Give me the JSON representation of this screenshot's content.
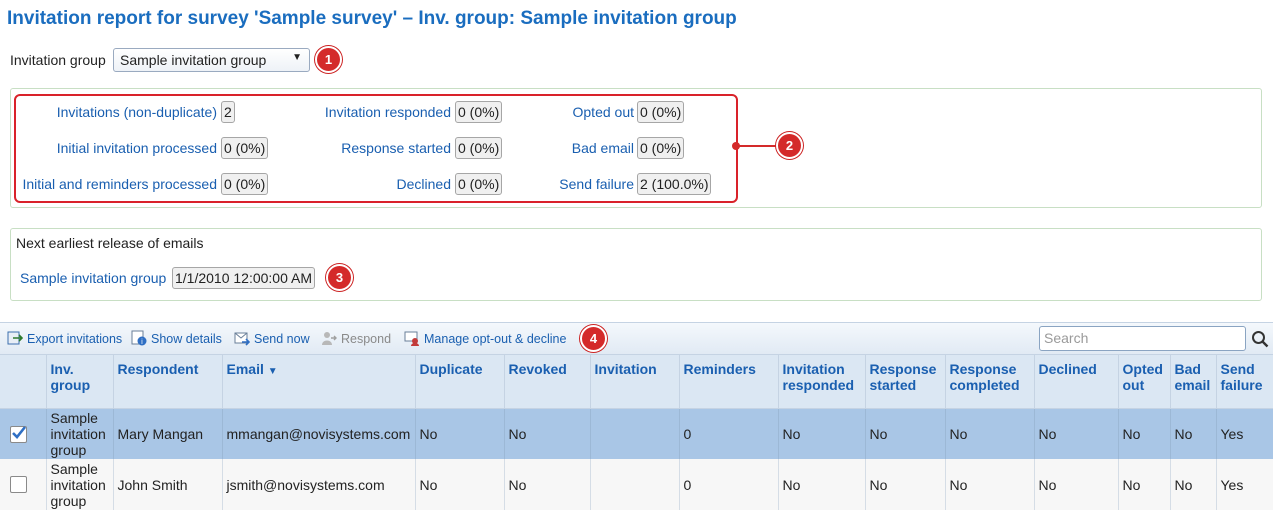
{
  "page": {
    "title": "Invitation report for survey 'Sample survey' – Inv. group: Sample invitation group"
  },
  "group_selector": {
    "label": "Invitation group",
    "selected": "Sample invitation group",
    "arrow": "▼"
  },
  "markers": [
    "1",
    "2",
    "3",
    "4"
  ],
  "stats": {
    "invitations_nondup": {
      "label": "Invitations (non-duplicate)",
      "value": "2"
    },
    "initial_processed": {
      "label": "Initial invitation processed",
      "value": "0 (0%)"
    },
    "initial_reminders_processed": {
      "label": "Initial and reminders processed",
      "value": "0 (0%)"
    },
    "invitation_responded": {
      "label": "Invitation responded",
      "value": "0 (0%)"
    },
    "response_started": {
      "label": "Response started",
      "value": "0 (0%)"
    },
    "declined": {
      "label": "Declined",
      "value": "0 (0%)"
    },
    "opted_out": {
      "label": "Opted out",
      "value": "0 (0%)"
    },
    "bad_email": {
      "label": "Bad email",
      "value": "0 (0%)"
    },
    "send_failure": {
      "label": "Send failure",
      "value": "2 (100.0%)"
    }
  },
  "release": {
    "title": "Next earliest release of emails",
    "group_label": "Sample invitation group",
    "datetime": "1/1/2010 12:00:00 AM"
  },
  "toolbar": {
    "export": "Export invitations",
    "show_details": "Show details",
    "send_now": "Send now",
    "respond": "Respond",
    "manage": "Manage opt-out & decline",
    "search_placeholder": "Search"
  },
  "table": {
    "headers": {
      "inv_group": "Inv. group",
      "respondent": "Respondent",
      "email": "Email",
      "sort_arrow": "▼",
      "duplicate": "Duplicate",
      "revoked": "Revoked",
      "invitation": "Invitation",
      "reminders": "Reminders",
      "invitation_responded": "Invitation responded",
      "response_started": "Response started",
      "response_completed": "Response completed",
      "declined": "Declined",
      "opted_out": "Opted out",
      "bad_email": "Bad email",
      "send_failure": "Send failure"
    },
    "rows": [
      {
        "checked": true,
        "inv_group": "Sample invitation group",
        "respondent": "Mary Mangan",
        "email": "mmangan@novisystems.com",
        "duplicate": "No",
        "revoked": "No",
        "invitation": "",
        "reminders": "0",
        "invitation_responded": "No",
        "response_started": "No",
        "response_completed": "No",
        "declined": "No",
        "opted_out": "No",
        "bad_email": "No",
        "send_failure": "Yes"
      },
      {
        "checked": false,
        "inv_group": "Sample invitation group",
        "respondent": "John Smith",
        "email": "jsmith@novisystems.com",
        "duplicate": "No",
        "revoked": "No",
        "invitation": "",
        "reminders": "0",
        "invitation_responded": "No",
        "response_started": "No",
        "response_completed": "No",
        "declined": "No",
        "opted_out": "No",
        "bad_email": "No",
        "send_failure": "Yes"
      }
    ]
  },
  "colors": {
    "accent": "#1a6dbf",
    "marker": "#d42a2a",
    "selected_row": "#a9c6e6"
  }
}
